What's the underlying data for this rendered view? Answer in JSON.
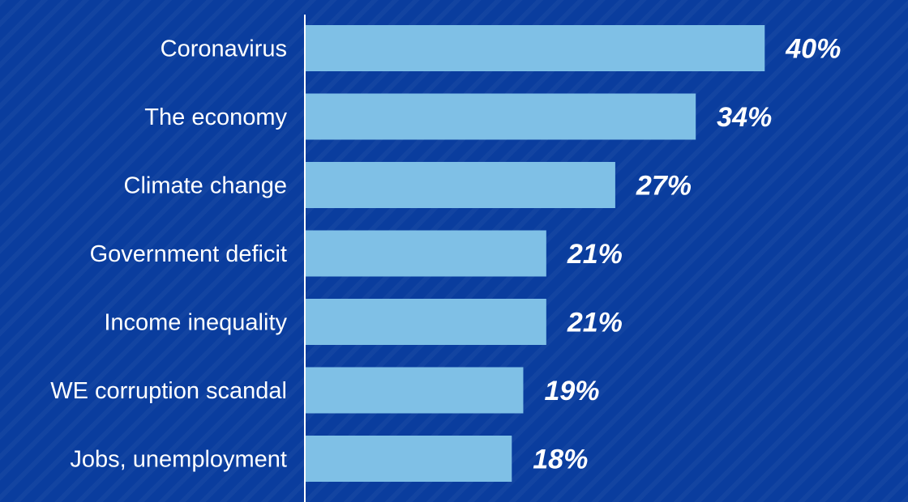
{
  "chart_data": {
    "type": "bar",
    "orientation": "horizontal",
    "title": "",
    "xlabel": "",
    "ylabel": "",
    "categories": [
      "Coronavirus",
      "The economy",
      "Climate change",
      "Government deficit",
      "Income inequality",
      "WE corruption scandal",
      "Jobs, unemployment"
    ],
    "values": [
      40,
      34,
      27,
      21,
      21,
      19,
      18
    ],
    "value_labels": [
      "40%",
      "34%",
      "27%",
      "21%",
      "21%",
      "19%",
      "18%"
    ],
    "xlim": [
      0,
      44
    ],
    "grid": false,
    "legend": "none"
  },
  "colors": {
    "background": "#0a3d9e",
    "bar": "#7fc0e6",
    "axis": "#ffffff",
    "text": "#ffffff"
  }
}
